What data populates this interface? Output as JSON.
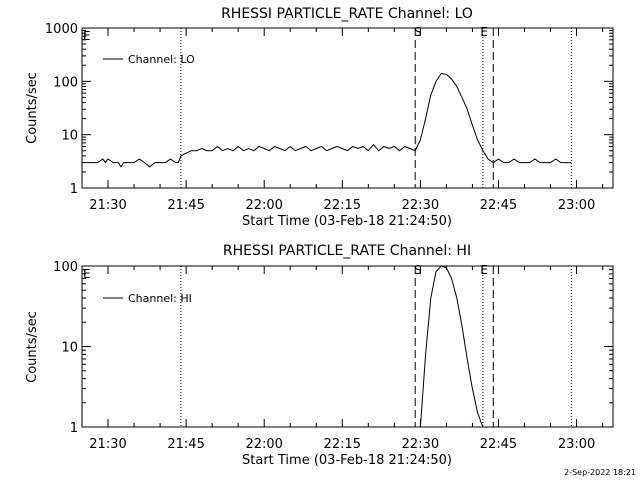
{
  "footer": {
    "date_stamp": "2-Sep-2022 18:21"
  },
  "chart_data": [
    {
      "type": "line",
      "title": "RHESSI PARTICLE_RATE Channel: LO",
      "xlabel": "Start Time (03-Feb-18 21:24:50)",
      "ylabel": "Counts/sec",
      "y_scale": "log",
      "ylim": [
        1,
        1000
      ],
      "y_ticks": [
        "1",
        "10",
        "100",
        "1000"
      ],
      "xlim": [
        "21:25",
        "23:07"
      ],
      "x_ticks": [
        "21:30",
        "21:45",
        "22:00",
        "22:15",
        "22:30",
        "22:45",
        "23:00"
      ],
      "grid": false,
      "legend": {
        "position": "top-left",
        "entries": [
          "Channel: LO"
        ]
      },
      "markers": [
        {
          "label": "S",
          "time": "22:29",
          "style": "dashed"
        },
        {
          "label": "E",
          "time": "22:44",
          "style": "dashed"
        }
      ],
      "night_lines": [
        {
          "label": "E",
          "time": "21:24",
          "style": "dotted"
        },
        {
          "time": "21:44",
          "style": "dotted"
        },
        {
          "time": "22:42",
          "style": "dotted"
        },
        {
          "time": "22:59",
          "style": "dotted"
        }
      ],
      "series": [
        {
          "name": "Channel: LO",
          "x": [
            "21:25",
            "21:26",
            "21:27",
            "21:28",
            "21:29",
            "21:29.5",
            "21:30",
            "21:31",
            "21:32",
            "21:32.5",
            "21:33",
            "21:34",
            "21:35",
            "21:36",
            "21:37",
            "21:38",
            "21:39",
            "21:40",
            "21:41",
            "21:42",
            "21:43",
            "21:43.5",
            "21:44",
            "21:45",
            "21:46",
            "21:47",
            "21:48",
            "21:49",
            "21:50",
            "21:51",
            "21:52",
            "21:53",
            "21:54",
            "21:55",
            "21:56",
            "21:57",
            "21:58",
            "21:59",
            "22:00",
            "22:01",
            "22:02",
            "22:03",
            "22:04",
            "22:05",
            "22:06",
            "22:07",
            "22:08",
            "22:09",
            "22:10",
            "22:11",
            "22:12",
            "22:13",
            "22:14",
            "22:15",
            "22:16",
            "22:17",
            "22:18",
            "22:19",
            "22:20",
            "22:21",
            "22:22",
            "22:23",
            "22:24",
            "22:25",
            "22:26",
            "22:27",
            "22:28",
            "22:29",
            "22:30",
            "22:31",
            "22:32",
            "22:33",
            "22:34",
            "22:35",
            "22:36",
            "22:37",
            "22:38",
            "22:39",
            "22:40",
            "22:41",
            "22:42",
            "22:43",
            "22:44",
            "22:45",
            "22:46",
            "22:47",
            "22:48",
            "22:49",
            "22:50",
            "22:51",
            "22:52",
            "22:53",
            "22:54",
            "22:55",
            "22:56",
            "22:57",
            "22:58",
            "22:59"
          ],
          "y": [
            3,
            3,
            3,
            3,
            3.5,
            3,
            3.5,
            3,
            3,
            2.5,
            3,
            3,
            3,
            3.5,
            3,
            2.5,
            3,
            3,
            3,
            3.5,
            3,
            3,
            4,
            4.5,
            5,
            5,
            5.5,
            5,
            5,
            6,
            5,
            5.5,
            5,
            6,
            5,
            5.5,
            5,
            6,
            5.5,
            5,
            6,
            5.5,
            5,
            6,
            5,
            5.5,
            6,
            5,
            5.5,
            6,
            5,
            5.5,
            6,
            5.5,
            5,
            6,
            5.5,
            6,
            5,
            6.5,
            5,
            6,
            5.5,
            6,
            5,
            6,
            5.5,
            5,
            8,
            20,
            55,
            100,
            140,
            135,
            110,
            80,
            50,
            30,
            15,
            8,
            5,
            3.5,
            3,
            3.5,
            3,
            3,
            3.5,
            3,
            3,
            3,
            3.5,
            3,
            3,
            3,
            3.5,
            3,
            3,
            3
          ]
        }
      ]
    },
    {
      "type": "line",
      "title": "RHESSI PARTICLE_RATE Channel: HI",
      "xlabel": "Start Time (03-Feb-18 21:24:50)",
      "ylabel": "Counts/sec",
      "y_scale": "log",
      "ylim": [
        1,
        100
      ],
      "y_ticks": [
        "1",
        "10",
        "100"
      ],
      "xlim": [
        "21:25",
        "23:07"
      ],
      "x_ticks": [
        "21:30",
        "21:45",
        "22:00",
        "22:15",
        "22:30",
        "22:45",
        "23:00"
      ],
      "grid": false,
      "legend": {
        "position": "top-left",
        "entries": [
          "Channel: HI"
        ]
      },
      "markers": [
        {
          "label": "S",
          "time": "22:29",
          "style": "dashed"
        },
        {
          "label": "E",
          "time": "22:44",
          "style": "dashed"
        }
      ],
      "night_lines": [
        {
          "label": "E",
          "time": "21:24",
          "style": "dotted"
        },
        {
          "time": "21:44",
          "style": "dotted"
        },
        {
          "time": "22:42",
          "style": "dotted"
        },
        {
          "time": "22:59",
          "style": "dotted"
        }
      ],
      "series": [
        {
          "name": "Channel: HI",
          "x": [
            "22:30",
            "22:31",
            "22:32",
            "22:33",
            "22:34",
            "22:35",
            "22:36",
            "22:37",
            "22:38",
            "22:39",
            "22:40",
            "22:41",
            "22:42"
          ],
          "y": [
            1,
            8,
            40,
            85,
            100,
            95,
            70,
            40,
            18,
            7,
            3,
            1.5,
            1
          ]
        }
      ]
    }
  ]
}
